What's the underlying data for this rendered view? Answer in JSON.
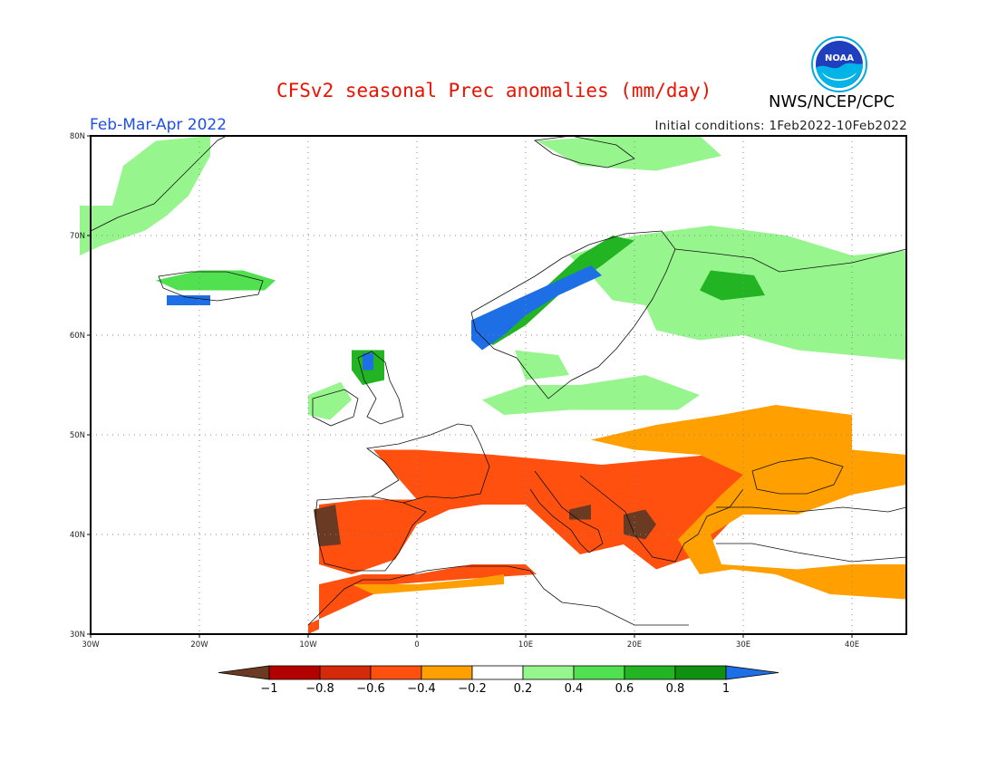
{
  "title": "CFSv2 seasonal Prec anomalies (mm/day)",
  "agency": "NWS/NCEP/CPC",
  "logo_text": "NOAA",
  "period": "Feb-Mar-Apr 2022",
  "initial_conditions": "Initial conditions:  1Feb2022-10Feb2022",
  "map": {
    "lon_range": [
      -30,
      45
    ],
    "lat_range": [
      30,
      80
    ],
    "lat_ticks": [
      {
        "value": 80,
        "label": "80N"
      },
      {
        "value": 70,
        "label": "70N"
      },
      {
        "value": 60,
        "label": "60N"
      },
      {
        "value": 50,
        "label": "50N"
      },
      {
        "value": 40,
        "label": "40N"
      },
      {
        "value": 30,
        "label": "30N"
      }
    ],
    "lon_ticks": [
      {
        "value": -30,
        "label": "30W"
      },
      {
        "value": -20,
        "label": "20W"
      },
      {
        "value": -10,
        "label": "10W"
      },
      {
        "value": 0,
        "label": "0"
      },
      {
        "value": 10,
        "label": "10E"
      },
      {
        "value": 20,
        "label": "20E"
      },
      {
        "value": 30,
        "label": "30E"
      },
      {
        "value": 40,
        "label": "40E"
      }
    ],
    "regions": [
      {
        "name": "Greenland coast",
        "value": 0.3,
        "lonlat": [
          [
            -31,
            68
          ],
          [
            -31,
            73
          ],
          [
            -28,
            73
          ],
          [
            -27,
            77
          ],
          [
            -24,
            79.5
          ],
          [
            -19,
            80
          ],
          [
            -19,
            78
          ],
          [
            -21,
            74
          ],
          [
            -23,
            72
          ],
          [
            -25,
            70.5
          ],
          [
            -29,
            69
          ]
        ]
      },
      {
        "name": "Iceland north",
        "value": 0.5,
        "lonlat": [
          [
            -24,
            65.5
          ],
          [
            -20,
            66.5
          ],
          [
            -16,
            66.5
          ],
          [
            -13,
            65.5
          ],
          [
            -14,
            64.5
          ],
          [
            -22,
            64.5
          ]
        ]
      },
      {
        "name": "Iceland west",
        "value": 1.0,
        "lonlat": [
          [
            -23,
            64
          ],
          [
            -19,
            64
          ],
          [
            -19,
            63
          ],
          [
            -23,
            63
          ]
        ]
      },
      {
        "name": "Svalbard",
        "value": 0.3,
        "lonlat": [
          [
            11,
            79.5
          ],
          [
            18,
            80
          ],
          [
            26,
            80
          ],
          [
            28,
            78
          ],
          [
            22,
            76.5
          ],
          [
            15,
            77
          ]
        ]
      },
      {
        "name": "N Scandinavia and NW Russia",
        "value": 0.3,
        "lonlat": [
          [
            14,
            68
          ],
          [
            20,
            70
          ],
          [
            27,
            71
          ],
          [
            34,
            70
          ],
          [
            40,
            68
          ],
          [
            45,
            68.5
          ],
          [
            45,
            57.5
          ],
          [
            35,
            58.5
          ],
          [
            30,
            60
          ],
          [
            26,
            59.5
          ],
          [
            22,
            60.5
          ],
          [
            21,
            63
          ],
          [
            18,
            63.5
          ],
          [
            16,
            66
          ]
        ]
      },
      {
        "name": "Kola wet core",
        "value": 0.6,
        "lonlat": [
          [
            27,
            66.5
          ],
          [
            31,
            66
          ],
          [
            32,
            64
          ],
          [
            28,
            63.5
          ],
          [
            26,
            64.5
          ]
        ]
      },
      {
        "name": "Norway coast wet",
        "value": 0.6,
        "lonlat": [
          [
            5,
            60
          ],
          [
            8,
            62
          ],
          [
            12,
            65
          ],
          [
            15,
            68
          ],
          [
            18,
            70
          ],
          [
            20,
            69.5
          ],
          [
            17,
            67
          ],
          [
            13,
            64
          ],
          [
            10,
            61
          ],
          [
            7,
            59
          ]
        ]
      },
      {
        "name": "Norway coast strong",
        "value": 1.0,
        "lonlat": [
          [
            5,
            61.5
          ],
          [
            7,
            62.5
          ],
          [
            10,
            64
          ],
          [
            14,
            66
          ],
          [
            16,
            67
          ],
          [
            17,
            66
          ],
          [
            13,
            64
          ],
          [
            10,
            62
          ],
          [
            8,
            60
          ],
          [
            6,
            58.5
          ],
          [
            5,
            59.5
          ]
        ]
      },
      {
        "name": "S Sweden patch",
        "value": 0.3,
        "lonlat": [
          [
            9,
            58.5
          ],
          [
            13,
            58
          ],
          [
            14,
            56
          ],
          [
            10,
            55.5
          ]
        ]
      },
      {
        "name": "Scotland",
        "value": 0.6,
        "lonlat": [
          [
            -6,
            58.5
          ],
          [
            -3,
            58.5
          ],
          [
            -3,
            55.5
          ],
          [
            -5,
            55
          ],
          [
            -6,
            56.5
          ]
        ]
      },
      {
        "name": "Scotland blue",
        "value": 1.0,
        "lonlat": [
          [
            -5,
            58.2
          ],
          [
            -4,
            58.2
          ],
          [
            -4,
            56.5
          ],
          [
            -5,
            56.5
          ]
        ]
      },
      {
        "name": "Ireland",
        "value": 0.3,
        "lonlat": [
          [
            -10,
            54
          ],
          [
            -7,
            55.3
          ],
          [
            -6,
            53.5
          ],
          [
            -8,
            51.5
          ],
          [
            -10,
            52
          ]
        ]
      },
      {
        "name": "Denmark-Baltic",
        "value": 0.3,
        "lonlat": [
          [
            6,
            53.5
          ],
          [
            10,
            55
          ],
          [
            15,
            55
          ],
          [
            21,
            56
          ],
          [
            26,
            54
          ],
          [
            24,
            52.5
          ],
          [
            14,
            52.5
          ],
          [
            8,
            52
          ]
        ]
      },
      {
        "name": "France-Iberia-Italy dry",
        "value": -0.6,
        "lonlat": [
          [
            -4,
            48.5
          ],
          [
            0,
            48.5
          ],
          [
            7,
            48
          ],
          [
            12,
            47.5
          ],
          [
            17,
            47
          ],
          [
            22,
            47.5
          ],
          [
            27,
            48
          ],
          [
            30,
            47
          ],
          [
            32,
            45
          ],
          [
            29,
            41.5
          ],
          [
            26,
            38
          ],
          [
            22,
            36.5
          ],
          [
            19,
            39
          ],
          [
            15,
            38
          ],
          [
            13,
            40
          ],
          [
            10,
            43
          ],
          [
            6,
            43
          ],
          [
            3,
            42.5
          ],
          [
            0,
            41
          ],
          [
            -2,
            37.5
          ],
          [
            -6,
            36
          ],
          [
            -9,
            37
          ],
          [
            -9,
            43
          ],
          [
            -5,
            43.5
          ],
          [
            0,
            43.5
          ],
          [
            -2,
            46
          ]
        ]
      },
      {
        "name": "E Europe orange",
        "value": -0.3,
        "lonlat": [
          [
            16,
            49.5
          ],
          [
            22,
            51
          ],
          [
            28,
            52
          ],
          [
            33,
            53
          ],
          [
            40,
            52
          ],
          [
            40,
            48.5
          ],
          [
            45,
            48
          ],
          [
            45,
            45
          ],
          [
            40,
            44
          ],
          [
            35,
            42
          ],
          [
            30,
            42
          ],
          [
            27,
            40
          ],
          [
            28,
            37
          ],
          [
            35,
            36.5
          ],
          [
            40,
            37
          ],
          [
            45,
            37
          ],
          [
            45,
            33.5
          ],
          [
            38,
            34
          ],
          [
            33,
            36
          ],
          [
            29,
            36.5
          ],
          [
            26,
            36
          ],
          [
            24,
            39.5
          ],
          [
            28,
            44
          ],
          [
            30,
            46
          ],
          [
            26,
            48
          ],
          [
            20,
            48.5
          ]
        ]
      },
      {
        "name": "Iberia west strongest",
        "value": -1.0,
        "lonlat": [
          [
            -9.5,
            42.5
          ],
          [
            -7.5,
            43
          ],
          [
            -7,
            39
          ],
          [
            -9,
            38.8
          ]
        ]
      },
      {
        "name": "Balkans strongest",
        "value": -1.0,
        "lonlat": [
          [
            19,
            42
          ],
          [
            21,
            42.5
          ],
          [
            22,
            41
          ],
          [
            21,
            39.5
          ],
          [
            19,
            40
          ]
        ]
      },
      {
        "name": "Italy strongest",
        "value": -1.0,
        "lonlat": [
          [
            14,
            42.5
          ],
          [
            16,
            43
          ],
          [
            16,
            41.5
          ],
          [
            14,
            41.5
          ]
        ]
      },
      {
        "name": "N Africa dry",
        "value": -0.6,
        "lonlat": [
          [
            -9,
            35
          ],
          [
            -5,
            36
          ],
          [
            0,
            36
          ],
          [
            5,
            37
          ],
          [
            10,
            37
          ],
          [
            11,
            36
          ],
          [
            4,
            35.5
          ],
          [
            -2,
            35
          ],
          [
            -6,
            33
          ],
          [
            -10,
            31
          ],
          [
            -10,
            30
          ],
          [
            -9,
            30.5
          ]
        ]
      },
      {
        "name": "N Africa light",
        "value": -0.3,
        "lonlat": [
          [
            -6,
            35
          ],
          [
            0,
            35
          ],
          [
            5,
            35.5
          ],
          [
            8,
            36
          ],
          [
            8,
            35
          ],
          [
            2,
            34.5
          ],
          [
            -4,
            34
          ]
        ]
      }
    ]
  },
  "colorbar": {
    "labels": [
      "-1",
      "-0.8",
      "-0.6",
      "-0.4",
      "-0.2",
      "0.2",
      "0.4",
      "0.6",
      "0.8",
      "1"
    ],
    "colors": [
      "#6b3a22",
      "#b30000",
      "#d42a0a",
      "#ff5010",
      "#ffa000",
      "#ffffff",
      "#96f58c",
      "#50e050",
      "#22b422",
      "#109010",
      "#1e6ee6"
    ]
  }
}
